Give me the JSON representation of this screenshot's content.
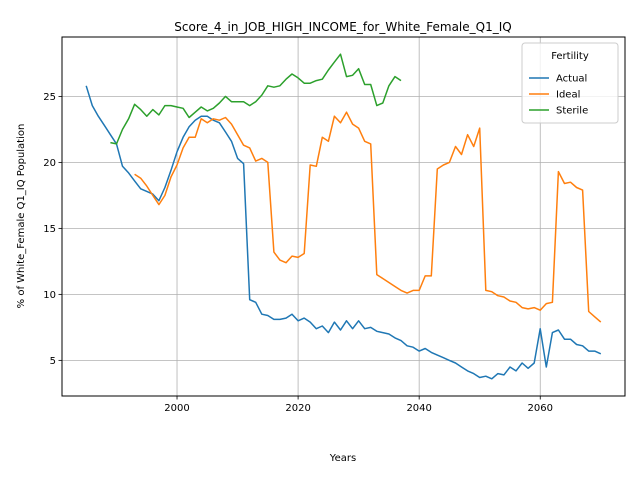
{
  "chart_data": {
    "type": "line",
    "title": "Score_4_in_JOB_HIGH_INCOME_for_White_Female_Q1_IQ",
    "xlabel": "Years",
    "ylabel": "% of White_Female Q1_IQ Population",
    "xlim": [
      1981,
      2074
    ],
    "ylim": [
      2.3,
      29.5
    ],
    "xticks": [
      2000,
      2020,
      2040,
      2060
    ],
    "yticks": [
      5,
      10,
      15,
      20,
      25
    ],
    "grid": true,
    "legend": {
      "title": "Fertility",
      "position": "top-right"
    },
    "series": [
      {
        "name": "Actual",
        "color": "#1f77b4",
        "points": [
          [
            1985,
            25.8
          ],
          [
            1986,
            24.3
          ],
          [
            1987,
            23.5
          ],
          [
            1988,
            22.8
          ],
          [
            1989,
            22.1
          ],
          [
            1990,
            21.4
          ],
          [
            1991,
            19.7
          ],
          [
            1992,
            19.2
          ],
          [
            1993,
            18.6
          ],
          [
            1994,
            18.0
          ],
          [
            1995,
            17.8
          ],
          [
            1996,
            17.6
          ],
          [
            1997,
            17.1
          ],
          [
            1998,
            18.1
          ],
          [
            1999,
            19.4
          ],
          [
            2000,
            20.8
          ],
          [
            2001,
            21.9
          ],
          [
            2002,
            22.7
          ],
          [
            2003,
            23.2
          ],
          [
            2004,
            23.5
          ],
          [
            2005,
            23.5
          ],
          [
            2006,
            23.2
          ],
          [
            2007,
            23.0
          ],
          [
            2008,
            22.3
          ],
          [
            2009,
            21.6
          ],
          [
            2010,
            20.3
          ],
          [
            2011,
            19.9
          ],
          [
            2012,
            9.6
          ],
          [
            2013,
            9.4
          ],
          [
            2014,
            8.5
          ],
          [
            2015,
            8.4
          ],
          [
            2016,
            8.1
          ],
          [
            2017,
            8.1
          ],
          [
            2018,
            8.2
          ],
          [
            2019,
            8.5
          ],
          [
            2020,
            8.0
          ],
          [
            2021,
            8.2
          ],
          [
            2022,
            7.9
          ],
          [
            2023,
            7.4
          ],
          [
            2024,
            7.6
          ],
          [
            2025,
            7.1
          ],
          [
            2026,
            7.9
          ],
          [
            2027,
            7.3
          ],
          [
            2028,
            8.0
          ],
          [
            2029,
            7.4
          ],
          [
            2030,
            8.0
          ],
          [
            2031,
            7.4
          ],
          [
            2032,
            7.5
          ],
          [
            2033,
            7.2
          ],
          [
            2034,
            7.1
          ],
          [
            2035,
            7.0
          ],
          [
            2036,
            6.7
          ],
          [
            2037,
            6.5
          ],
          [
            2038,
            6.1
          ],
          [
            2039,
            6.0
          ],
          [
            2040,
            5.7
          ],
          [
            2041,
            5.9
          ],
          [
            2042,
            5.6
          ],
          [
            2043,
            5.4
          ],
          [
            2044,
            5.2
          ],
          [
            2045,
            5.0
          ],
          [
            2046,
            4.8
          ],
          [
            2047,
            4.5
          ],
          [
            2048,
            4.2
          ],
          [
            2049,
            4.0
          ],
          [
            2050,
            3.7
          ],
          [
            2051,
            3.8
          ],
          [
            2052,
            3.6
          ],
          [
            2053,
            4.0
          ],
          [
            2054,
            3.9
          ],
          [
            2055,
            4.5
          ],
          [
            2056,
            4.2
          ],
          [
            2057,
            4.8
          ],
          [
            2058,
            4.4
          ],
          [
            2059,
            4.8
          ],
          [
            2060,
            7.4
          ],
          [
            2061,
            4.5
          ],
          [
            2062,
            7.1
          ],
          [
            2063,
            7.3
          ],
          [
            2064,
            6.6
          ],
          [
            2065,
            6.6
          ],
          [
            2066,
            6.2
          ],
          [
            2067,
            6.1
          ],
          [
            2068,
            5.7
          ],
          [
            2069,
            5.7
          ],
          [
            2070,
            5.5
          ]
        ]
      },
      {
        "name": "Ideal",
        "color": "#ff7f0e",
        "points": [
          [
            1993,
            19.1
          ],
          [
            1994,
            18.8
          ],
          [
            1995,
            18.2
          ],
          [
            1996,
            17.5
          ],
          [
            1997,
            16.8
          ],
          [
            1998,
            17.5
          ],
          [
            1999,
            18.9
          ],
          [
            2000,
            19.8
          ],
          [
            2001,
            21.1
          ],
          [
            2002,
            21.9
          ],
          [
            2003,
            21.9
          ],
          [
            2004,
            23.3
          ],
          [
            2005,
            23.0
          ],
          [
            2006,
            23.3
          ],
          [
            2007,
            23.2
          ],
          [
            2008,
            23.4
          ],
          [
            2009,
            22.9
          ],
          [
            2010,
            22.1
          ],
          [
            2011,
            21.3
          ],
          [
            2012,
            21.1
          ],
          [
            2013,
            20.1
          ],
          [
            2014,
            20.3
          ],
          [
            2015,
            20.0
          ],
          [
            2016,
            13.2
          ],
          [
            2017,
            12.6
          ],
          [
            2018,
            12.4
          ],
          [
            2019,
            12.9
          ],
          [
            2020,
            12.8
          ],
          [
            2021,
            13.1
          ],
          [
            2022,
            19.8
          ],
          [
            2023,
            19.7
          ],
          [
            2024,
            21.9
          ],
          [
            2025,
            21.6
          ],
          [
            2026,
            23.5
          ],
          [
            2027,
            23.0
          ],
          [
            2028,
            23.8
          ],
          [
            2029,
            22.9
          ],
          [
            2030,
            22.6
          ],
          [
            2031,
            21.6
          ],
          [
            2032,
            21.4
          ],
          [
            2033,
            11.5
          ],
          [
            2034,
            11.2
          ],
          [
            2035,
            10.9
          ],
          [
            2036,
            10.6
          ],
          [
            2037,
            10.3
          ],
          [
            2038,
            10.1
          ],
          [
            2039,
            10.3
          ],
          [
            2040,
            10.3
          ],
          [
            2041,
            11.4
          ],
          [
            2042,
            11.4
          ],
          [
            2043,
            19.5
          ],
          [
            2044,
            19.8
          ],
          [
            2045,
            20.0
          ],
          [
            2046,
            21.2
          ],
          [
            2047,
            20.6
          ],
          [
            2048,
            22.1
          ],
          [
            2049,
            21.2
          ],
          [
            2050,
            22.6
          ],
          [
            2051,
            10.3
          ],
          [
            2052,
            10.2
          ],
          [
            2053,
            9.9
          ],
          [
            2054,
            9.8
          ],
          [
            2055,
            9.5
          ],
          [
            2056,
            9.4
          ],
          [
            2057,
            9.0
          ],
          [
            2058,
            8.9
          ],
          [
            2059,
            9.0
          ],
          [
            2060,
            8.8
          ],
          [
            2061,
            9.3
          ],
          [
            2062,
            9.4
          ],
          [
            2063,
            19.3
          ],
          [
            2064,
            18.4
          ],
          [
            2065,
            18.5
          ],
          [
            2066,
            18.1
          ],
          [
            2067,
            17.9
          ],
          [
            2068,
            8.7
          ],
          [
            2069,
            8.3
          ],
          [
            2070,
            7.9
          ]
        ]
      },
      {
        "name": "Sterile",
        "color": "#2ca02c",
        "points": [
          [
            1989,
            21.5
          ],
          [
            1990,
            21.4
          ],
          [
            1991,
            22.5
          ],
          [
            1992,
            23.3
          ],
          [
            1993,
            24.4
          ],
          [
            1994,
            24.0
          ],
          [
            1995,
            23.5
          ],
          [
            1996,
            24.0
          ],
          [
            1997,
            23.6
          ],
          [
            1998,
            24.3
          ],
          [
            1999,
            24.3
          ],
          [
            2000,
            24.2
          ],
          [
            2001,
            24.1
          ],
          [
            2002,
            23.4
          ],
          [
            2003,
            23.8
          ],
          [
            2004,
            24.2
          ],
          [
            2005,
            23.9
          ],
          [
            2006,
            24.1
          ],
          [
            2007,
            24.5
          ],
          [
            2008,
            25.0
          ],
          [
            2009,
            24.6
          ],
          [
            2010,
            24.6
          ],
          [
            2011,
            24.6
          ],
          [
            2012,
            24.3
          ],
          [
            2013,
            24.6
          ],
          [
            2014,
            25.1
          ],
          [
            2015,
            25.8
          ],
          [
            2016,
            25.7
          ],
          [
            2017,
            25.8
          ],
          [
            2018,
            26.3
          ],
          [
            2019,
            26.7
          ],
          [
            2020,
            26.4
          ],
          [
            2021,
            26.0
          ],
          [
            2022,
            26.0
          ],
          [
            2023,
            26.2
          ],
          [
            2024,
            26.3
          ],
          [
            2025,
            27.0
          ],
          [
            2026,
            27.6
          ],
          [
            2027,
            28.2
          ],
          [
            2028,
            26.5
          ],
          [
            2029,
            26.6
          ],
          [
            2030,
            27.1
          ],
          [
            2031,
            25.9
          ],
          [
            2032,
            25.9
          ],
          [
            2033,
            24.3
          ],
          [
            2034,
            24.5
          ],
          [
            2035,
            25.8
          ],
          [
            2036,
            26.5
          ],
          [
            2037,
            26.2
          ]
        ]
      }
    ]
  }
}
